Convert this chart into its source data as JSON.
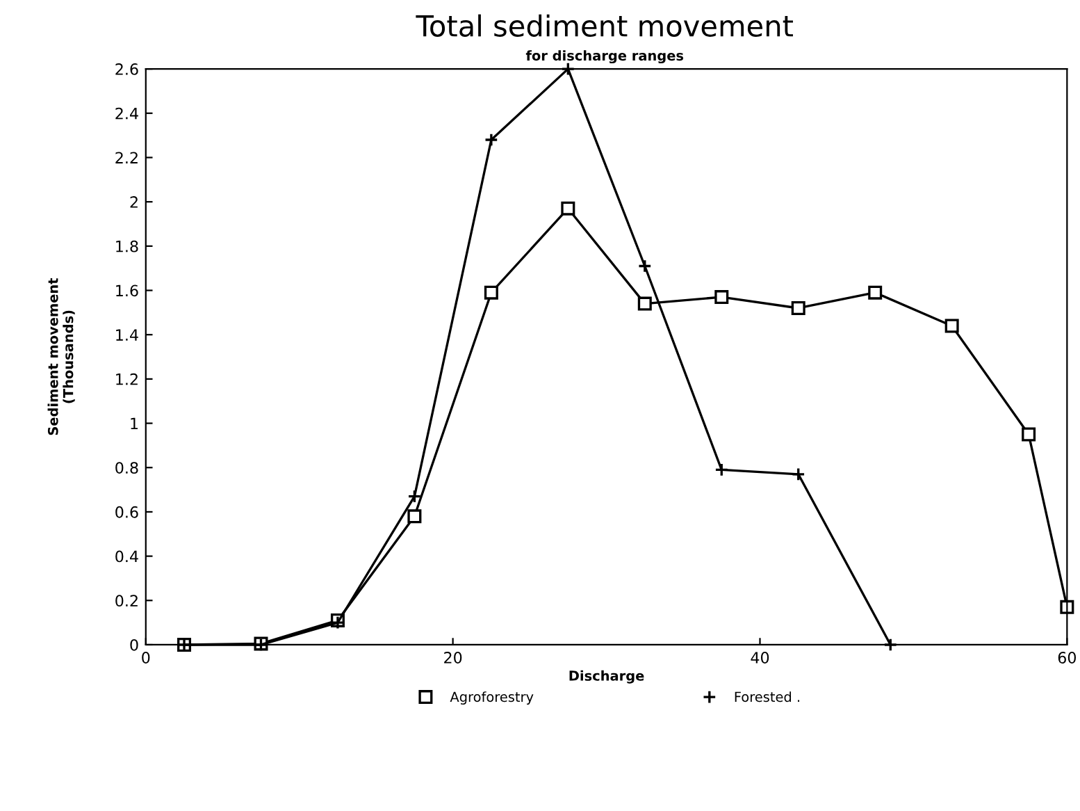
{
  "chart_data": {
    "type": "line",
    "title": "Total sediment movement",
    "subtitle": "for discharge ranges",
    "xlabel": "Discharge",
    "ylabel": "Sediment movement\n(Thousands)",
    "xlim": [
      0,
      60
    ],
    "xticks": [
      0,
      20,
      40,
      60
    ],
    "ylim": [
      0,
      2.6
    ],
    "yticks": [
      0,
      0.2,
      0.4,
      0.6,
      0.8,
      1,
      1.2,
      1.4,
      1.6,
      1.8,
      2,
      2.2,
      2.4,
      2.6
    ],
    "grid": false,
    "legend": "bottom",
    "line_style": "solid",
    "series": [
      {
        "name": "Agroforestry",
        "color": "#000000",
        "marker": "square",
        "x": [
          2.5,
          7.5,
          12.5,
          17.5,
          22.5,
          27.5,
          32.5,
          37.5,
          42.5,
          47.5,
          52.5,
          57.5,
          60
        ],
        "values": [
          0,
          0.005,
          0.11,
          0.58,
          1.59,
          1.97,
          1.54,
          1.57,
          1.52,
          1.59,
          1.44,
          0.95,
          0.17
        ]
      },
      {
        "name": "Forested .",
        "color": "#000000",
        "marker": "cross",
        "x": [
          2.5,
          7.5,
          12.5,
          17.5,
          22.5,
          27.5,
          32.5,
          37.5,
          42.5,
          48.5
        ],
        "values": [
          0,
          0,
          0.1,
          0.67,
          2.28,
          2.6,
          1.71,
          0.79,
          0.77,
          0
        ]
      }
    ]
  }
}
